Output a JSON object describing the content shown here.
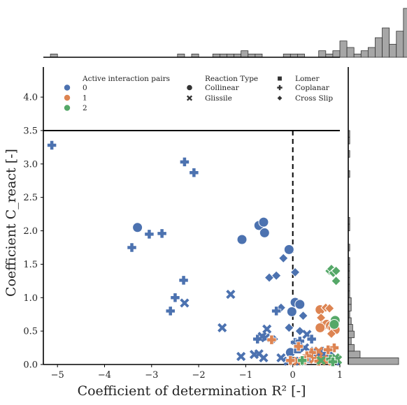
{
  "colors": {
    "group0": "#4c72b0",
    "group1": "#dd8452",
    "group2": "#55a868",
    "hist_fill": "#a6a6a6",
    "hist_edge": "#333333",
    "legend_marker": "#333333",
    "axis": "#000000"
  },
  "chart_data": {
    "type": "scatter",
    "xlabel": "Coefficient of determination R² [-]",
    "ylabel": "Coefficient C_react [-]",
    "xlim": [
      -5.3,
      1.0
    ],
    "ylim": [
      0.0,
      4.45
    ],
    "xticks": [
      -5,
      -4,
      -3,
      -2,
      -1,
      0,
      1
    ],
    "xtick_labels": [
      "−5",
      "−4",
      "−3",
      "−2",
      "−1",
      "0",
      "1"
    ],
    "yticks": [
      0.0,
      0.5,
      1.0,
      1.5,
      2.0,
      2.5,
      3.0,
      3.5,
      4.0
    ],
    "ytick_labels": [
      "0.0",
      "0.5",
      "1.0",
      "1.5",
      "2.0",
      "2.5",
      "3.0",
      "3.5",
      "4.0"
    ],
    "hline_y": 3.5,
    "vline_x": 0.0,
    "grid": false,
    "legend": {
      "placement": "top",
      "hue_title": "Active interaction pairs",
      "hue_items": [
        {
          "label": "0",
          "color_key": "group0"
        },
        {
          "label": "1",
          "color_key": "group1"
        },
        {
          "label": "2",
          "color_key": "group2"
        }
      ],
      "style_title": "Reaction Type",
      "style_items": [
        {
          "label": "Collinear",
          "marker": "circle"
        },
        {
          "label": "Glissile",
          "marker": "x"
        },
        {
          "label": "Lomer",
          "marker": "square"
        },
        {
          "label": "Coplanar",
          "marker": "plus"
        },
        {
          "label": "Cross Slip",
          "marker": "diamond"
        }
      ]
    },
    "series": [
      {
        "name": "0",
        "color_key": "group0",
        "points": [
          [
            -5.12,
            3.28,
            "plus"
          ],
          [
            -2.3,
            3.03,
            "plus"
          ],
          [
            -2.1,
            2.87,
            "plus"
          ],
          [
            -3.3,
            2.05,
            "circle"
          ],
          [
            -3.05,
            1.95,
            "plus"
          ],
          [
            -2.78,
            1.96,
            "plus"
          ],
          [
            -3.42,
            1.75,
            "plus"
          ],
          [
            -1.08,
            1.87,
            "circle"
          ],
          [
            -0.72,
            2.08,
            "circle"
          ],
          [
            -0.62,
            2.13,
            "circle"
          ],
          [
            -0.6,
            1.97,
            "circle"
          ],
          [
            -0.08,
            1.72,
            "circle"
          ],
          [
            -0.2,
            1.59,
            "diamond"
          ],
          [
            -0.5,
            1.3,
            "diamond"
          ],
          [
            -0.35,
            1.33,
            "diamond"
          ],
          [
            0.05,
            1.38,
            "diamond"
          ],
          [
            -2.32,
            1.26,
            "plus"
          ],
          [
            -2.5,
            1.0,
            "plus"
          ],
          [
            -2.3,
            0.92,
            "x"
          ],
          [
            -2.6,
            0.8,
            "plus"
          ],
          [
            -1.32,
            1.05,
            "x"
          ],
          [
            -1.5,
            0.55,
            "x"
          ],
          [
            0.05,
            0.93,
            "circle"
          ],
          [
            0.15,
            0.9,
            "circle"
          ],
          [
            -0.25,
            0.85,
            "diamond"
          ],
          [
            -0.35,
            0.8,
            "plus"
          ],
          [
            -0.02,
            0.79,
            "circle"
          ],
          [
            0.22,
            0.73,
            "diamond"
          ],
          [
            -0.08,
            0.55,
            "diamond"
          ],
          [
            0.15,
            0.5,
            "diamond"
          ],
          [
            -0.55,
            0.53,
            "x"
          ],
          [
            -0.75,
            0.38,
            "plus"
          ],
          [
            -0.65,
            0.42,
            "x"
          ],
          [
            -0.58,
            0.4,
            "x"
          ],
          [
            -0.4,
            0.38,
            "diamond"
          ],
          [
            0.3,
            0.45,
            "x"
          ],
          [
            0.05,
            0.33,
            "plus"
          ],
          [
            0.15,
            0.35,
            "plus"
          ],
          [
            0.4,
            0.38,
            "plus"
          ],
          [
            -1.1,
            0.12,
            "x"
          ],
          [
            -0.82,
            0.15,
            "x"
          ],
          [
            -0.72,
            0.16,
            "x"
          ],
          [
            -0.62,
            0.1,
            "x"
          ],
          [
            -0.25,
            0.1,
            "x"
          ],
          [
            -0.05,
            0.18,
            "circle"
          ],
          [
            0.1,
            0.22,
            "square"
          ],
          [
            0.25,
            0.25,
            "x"
          ],
          [
            0.35,
            0.2,
            "x"
          ],
          [
            0.5,
            0.18,
            "square"
          ],
          [
            0.6,
            0.15,
            "plus"
          ],
          [
            0.7,
            0.2,
            "x"
          ],
          [
            0.8,
            0.18,
            "x"
          ],
          [
            0.9,
            0.05,
            "x"
          ],
          [
            0.3,
            0.08,
            "square"
          ],
          [
            0.15,
            0.05,
            "x"
          ],
          [
            -0.1,
            0.05,
            "x"
          ]
        ]
      },
      {
        "name": "1",
        "color_key": "group1",
        "points": [
          [
            0.58,
            0.82,
            "circle"
          ],
          [
            0.7,
            0.85,
            "diamond"
          ],
          [
            0.78,
            0.84,
            "diamond"
          ],
          [
            0.6,
            0.7,
            "diamond"
          ],
          [
            0.65,
            0.58,
            "circle"
          ],
          [
            0.72,
            0.6,
            "circle"
          ],
          [
            0.58,
            0.55,
            "circle"
          ],
          [
            0.8,
            0.58,
            "circle"
          ],
          [
            0.85,
            0.55,
            "circle"
          ],
          [
            0.9,
            0.52,
            "circle"
          ],
          [
            0.82,
            0.46,
            "diamond"
          ],
          [
            0.88,
            0.25,
            "plus"
          ],
          [
            0.75,
            0.22,
            "plus"
          ],
          [
            0.55,
            0.2,
            "x"
          ],
          [
            0.4,
            0.18,
            "plus"
          ],
          [
            0.3,
            0.13,
            "plus"
          ],
          [
            0.25,
            0.07,
            "plus"
          ],
          [
            0.45,
            0.08,
            "x"
          ],
          [
            0.55,
            0.05,
            "plus"
          ],
          [
            0.65,
            0.08,
            "x"
          ],
          [
            0.72,
            0.05,
            "x"
          ],
          [
            0.1,
            0.05,
            "x"
          ],
          [
            -0.45,
            0.37,
            "plus"
          ],
          [
            -0.05,
            0.06,
            "plus"
          ],
          [
            0.12,
            0.27,
            "plus"
          ]
        ]
      },
      {
        "name": "2",
        "color_key": "group2",
        "points": [
          [
            0.78,
            1.4,
            "diamond"
          ],
          [
            0.82,
            1.43,
            "diamond"
          ],
          [
            0.86,
            1.37,
            "diamond"
          ],
          [
            0.92,
            1.4,
            "diamond"
          ],
          [
            0.92,
            1.25,
            "diamond"
          ],
          [
            0.9,
            0.66,
            "circle"
          ],
          [
            0.88,
            0.6,
            "circle"
          ],
          [
            0.9,
            0.1,
            "x"
          ],
          [
            0.95,
            0.07,
            "x"
          ],
          [
            0.8,
            0.08,
            "plus"
          ],
          [
            0.6,
            0.06,
            "x"
          ],
          [
            0.2,
            0.06,
            "plus"
          ],
          [
            0.85,
            0.04,
            "plus"
          ]
        ]
      }
    ],
    "marginal_x_hist": {
      "bin_edges_start": -5.3,
      "bin_width": 0.15,
      "counts": [
        0,
        1,
        0,
        0,
        0,
        0,
        0,
        0,
        0,
        0,
        0,
        0,
        0,
        0,
        0,
        0,
        0,
        0,
        0,
        1,
        0,
        1,
        0,
        0,
        1,
        1,
        1,
        1,
        2,
        1,
        1,
        0,
        0,
        0,
        1,
        1,
        1,
        0,
        0,
        2,
        1,
        2,
        5,
        3,
        1,
        2,
        3,
        6,
        9,
        4,
        8,
        15,
        13
      ]
    },
    "marginal_y_hist": {
      "bin_edges_start": 0.0,
      "bin_width": 0.1,
      "counts": [
        34,
        8,
        4,
        2,
        4,
        3,
        2,
        1,
        2,
        2,
        1,
        1,
        1,
        1,
        1,
        1,
        0,
        1,
        0,
        0,
        1,
        1,
        0,
        0,
        0,
        0,
        0,
        0,
        1,
        0,
        0,
        1,
        0,
        1,
        1
      ]
    }
  }
}
